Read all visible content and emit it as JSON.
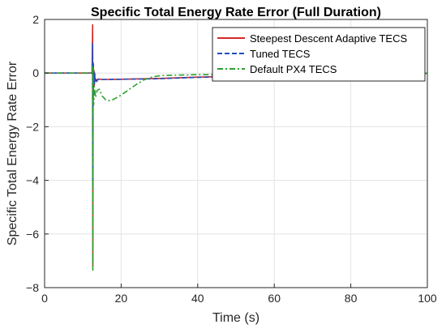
{
  "chart_data": {
    "type": "line",
    "title": "Specific Total Energy Rate Error (Full Duration)",
    "xlabel": "Time (s)",
    "ylabel": "Specific Total Energy Rate Error",
    "xlim": [
      0,
      100
    ],
    "ylim": [
      -8,
      2
    ],
    "xticks": [
      0,
      20,
      40,
      60,
      80,
      100
    ],
    "yticks": [
      2,
      0,
      -2,
      -4,
      -6,
      -8
    ],
    "xtick_labels": [
      "0",
      "20",
      "40",
      "60",
      "80",
      "100"
    ],
    "ytick_labels": [
      "2",
      "0",
      "−2",
      "−4",
      "−6",
      "−8"
    ],
    "grid": true,
    "legend_position": "top-right",
    "series": [
      {
        "name": "Steepest Descent Adaptive TECS",
        "color": "#d62728",
        "dash": "solid",
        "x": [
          0,
          12.4,
          12.55,
          12.6,
          12.65,
          12.7,
          12.75,
          12.8,
          12.9,
          13.0,
          13.1,
          13.2,
          13.4,
          13.6,
          13.8,
          14.2,
          15,
          20,
          30,
          40,
          60,
          80,
          98,
          100
        ],
        "y": [
          0,
          0,
          1.8,
          -7.2,
          0.4,
          -1.0,
          0.35,
          -0.5,
          0.1,
          -0.45,
          0.0,
          -0.3,
          -0.22,
          -0.32,
          -0.25,
          -0.22,
          -0.24,
          -0.23,
          -0.2,
          -0.15,
          -0.1,
          -0.07,
          -0.05,
          0
        ]
      },
      {
        "name": "Tuned TECS",
        "color": "#1f4fbf",
        "dash": "dashed",
        "x": [
          0,
          12.4,
          12.55,
          12.6,
          12.65,
          12.7,
          12.75,
          12.8,
          12.9,
          13.0,
          13.1,
          13.2,
          13.4,
          13.6,
          14.0,
          15,
          20,
          30,
          40,
          60,
          80,
          98,
          100
        ],
        "y": [
          0,
          0,
          1.1,
          -4.2,
          0.3,
          -0.8,
          0.2,
          -0.45,
          0.05,
          -0.4,
          -0.05,
          -0.3,
          -0.2,
          -0.3,
          -0.23,
          -0.24,
          -0.23,
          -0.21,
          -0.16,
          -0.11,
          -0.08,
          -0.05,
          0
        ]
      },
      {
        "name": "Default PX4 TECS",
        "color": "#2ca02c",
        "dash": "dashdot",
        "x": [
          0,
          12.4,
          12.5,
          12.6,
          12.7,
          12.8,
          13.0,
          13.3,
          13.7,
          14.3,
          15,
          16,
          17,
          18,
          20,
          22,
          24,
          26,
          28,
          30,
          33,
          36,
          40,
          50,
          60,
          70,
          80,
          90,
          98,
          100
        ],
        "y": [
          0,
          0,
          0.3,
          -7.35,
          0.2,
          -1.2,
          -0.5,
          -0.9,
          -0.65,
          -0.6,
          -0.85,
          -1.0,
          -1.03,
          -0.98,
          -0.82,
          -0.62,
          -0.42,
          -0.25,
          -0.15,
          -0.1,
          -0.08,
          -0.07,
          -0.06,
          -0.06,
          -0.05,
          -0.04,
          -0.04,
          -0.03,
          -0.02,
          0
        ]
      }
    ]
  }
}
